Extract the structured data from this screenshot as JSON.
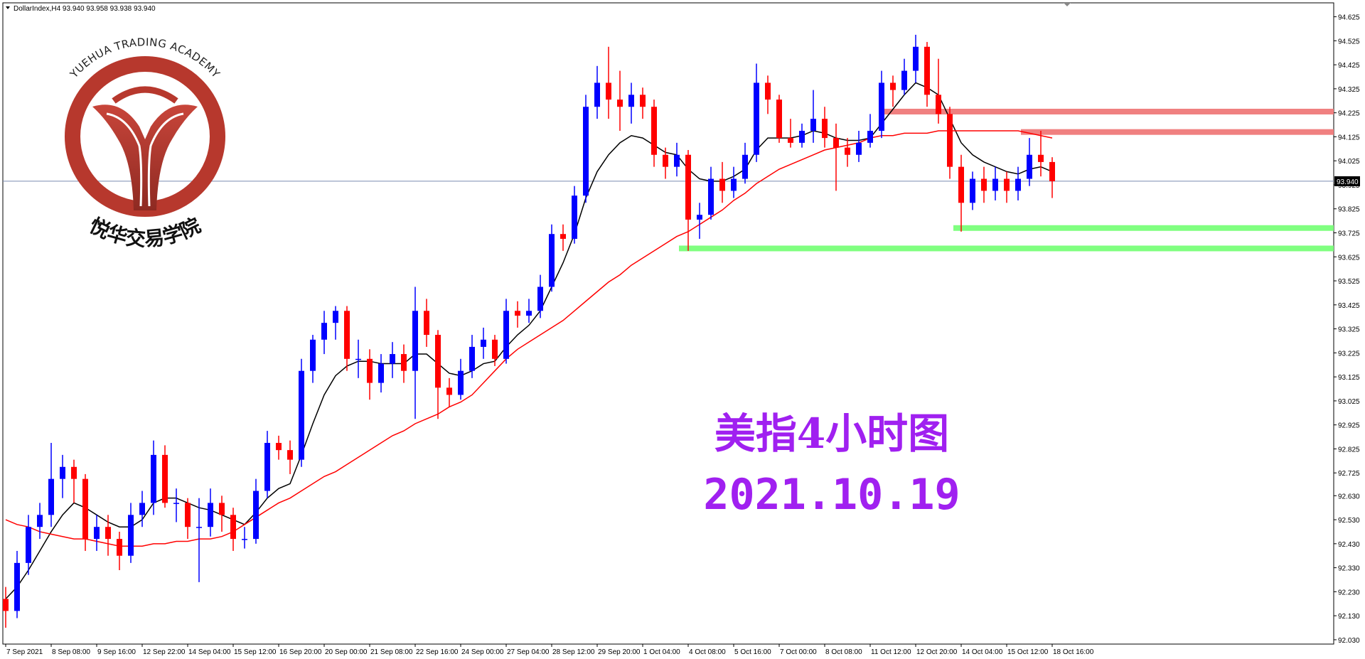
{
  "header": "DollarIndex,H4  93.940 93.958 93.938 93.940",
  "logo": {
    "arc_text": "YUEHUA TRADING ACADEMY",
    "name": "悦华交易学院"
  },
  "annotations": [
    "美指4小时图",
    "2021.10.19"
  ],
  "chart_data": {
    "type": "candlestick",
    "categories": [
      "7 Sep 2021",
      null,
      null,
      null,
      "8 Sep 08:00",
      null,
      null,
      null,
      "9 Sep 16:00",
      null,
      null,
      null,
      "12 Sep 22:00",
      null,
      null,
      null,
      "14 Sep 04:00",
      null,
      null,
      null,
      "15 Sep 12:00",
      null,
      null,
      null,
      "16 Sep 20:00",
      null,
      null,
      null,
      "20 Sep 00:00",
      null,
      null,
      null,
      "21 Sep 08:00",
      null,
      null,
      null,
      "22 Sep 16:00",
      null,
      null,
      null,
      "24 Sep 00:00",
      null,
      null,
      null,
      "27 Sep 04:00",
      null,
      null,
      null,
      "28 Sep 12:00",
      null,
      null,
      null,
      "29 Sep 20:00",
      null,
      null,
      null,
      "1 Oct 04:00",
      null,
      null,
      null,
      "4 Oct 08:00",
      null,
      null,
      null,
      "5 Oct 16:00",
      null,
      null,
      null,
      "7 Oct 00:00",
      null,
      null,
      null,
      "8 Oct 08:00",
      null,
      null,
      null,
      "11 Oct 12:00",
      null,
      null,
      null,
      "12 Oct 20:00",
      null,
      null,
      null,
      "14 Oct 04:00",
      null,
      null,
      null,
      "15 Oct 12:00",
      null,
      null,
      null,
      "18 Oct 16:00"
    ],
    "ohlc": [
      [
        92.2,
        92.25,
        92.08,
        92.15
      ],
      [
        92.15,
        92.4,
        92.12,
        92.35
      ],
      [
        92.35,
        92.55,
        92.3,
        92.5
      ],
      [
        92.5,
        92.6,
        92.45,
        92.55
      ],
      [
        92.55,
        92.85,
        92.5,
        92.7
      ],
      [
        92.7,
        92.8,
        92.62,
        92.75
      ],
      [
        92.75,
        92.78,
        92.6,
        92.7
      ],
      [
        92.7,
        92.72,
        92.4,
        92.45
      ],
      [
        92.45,
        92.55,
        92.4,
        92.5
      ],
      [
        92.5,
        92.55,
        92.38,
        92.45
      ],
      [
        92.45,
        92.48,
        92.32,
        92.38
      ],
      [
        92.38,
        92.6,
        92.35,
        92.55
      ],
      [
        92.55,
        92.65,
        92.5,
        92.6
      ],
      [
        92.6,
        92.86,
        92.55,
        92.8
      ],
      [
        92.8,
        92.84,
        92.58,
        92.6
      ],
      [
        92.6,
        92.66,
        92.52,
        92.6
      ],
      [
        92.6,
        92.62,
        92.45,
        92.5
      ],
      [
        92.5,
        92.62,
        92.27,
        92.5
      ],
      [
        92.5,
        92.66,
        92.46,
        92.6
      ],
      [
        92.6,
        92.63,
        92.48,
        92.55
      ],
      [
        92.55,
        92.58,
        92.4,
        92.45
      ],
      [
        92.45,
        92.5,
        92.41,
        92.45
      ],
      [
        92.45,
        92.7,
        92.43,
        92.65
      ],
      [
        92.65,
        92.9,
        92.62,
        92.85
      ],
      [
        92.85,
        92.88,
        92.78,
        92.82
      ],
      [
        92.82,
        92.86,
        92.72,
        92.78
      ],
      [
        92.78,
        93.2,
        92.75,
        93.15
      ],
      [
        93.15,
        93.3,
        93.1,
        93.28
      ],
      [
        93.28,
        93.4,
        93.22,
        93.35
      ],
      [
        93.35,
        93.42,
        93.28,
        93.4
      ],
      [
        93.4,
        93.42,
        93.15,
        93.2
      ],
      [
        93.2,
        93.28,
        93.12,
        93.2
      ],
      [
        93.2,
        93.24,
        93.03,
        93.1
      ],
      [
        93.1,
        93.22,
        93.06,
        93.18
      ],
      [
        93.18,
        93.27,
        93.12,
        93.22
      ],
      [
        93.22,
        93.26,
        93.1,
        93.15
      ],
      [
        93.15,
        93.5,
        92.95,
        93.4
      ],
      [
        93.4,
        93.45,
        93.25,
        93.3
      ],
      [
        93.3,
        93.32,
        92.95,
        93.08
      ],
      [
        93.08,
        93.12,
        93.0,
        93.05
      ],
      [
        93.05,
        93.2,
        93.03,
        93.15
      ],
      [
        93.15,
        93.3,
        93.12,
        93.25
      ],
      [
        93.25,
        93.33,
        93.2,
        93.28
      ],
      [
        93.28,
        93.3,
        93.17,
        93.2
      ],
      [
        93.2,
        93.45,
        93.18,
        93.4
      ],
      [
        93.4,
        93.44,
        93.33,
        93.38
      ],
      [
        93.38,
        93.45,
        93.35,
        93.4
      ],
      [
        93.4,
        93.55,
        93.37,
        93.5
      ],
      [
        93.5,
        93.76,
        93.48,
        93.72
      ],
      [
        93.72,
        93.76,
        93.65,
        93.7
      ],
      [
        93.7,
        93.92,
        93.68,
        93.88
      ],
      [
        93.88,
        94.3,
        93.85,
        94.25
      ],
      [
        94.25,
        94.42,
        94.2,
        94.35
      ],
      [
        94.35,
        94.5,
        94.2,
        94.28
      ],
      [
        94.28,
        94.4,
        94.15,
        94.25
      ],
      [
        94.25,
        94.35,
        94.18,
        94.3
      ],
      [
        94.3,
        94.33,
        94.2,
        94.25
      ],
      [
        94.25,
        94.28,
        94.0,
        94.05
      ],
      [
        94.05,
        94.08,
        93.95,
        94.0
      ],
      [
        94.0,
        94.1,
        93.96,
        94.05
      ],
      [
        94.05,
        94.07,
        93.65,
        93.78
      ],
      [
        93.78,
        93.85,
        93.7,
        93.8
      ],
      [
        93.8,
        94.0,
        93.78,
        93.95
      ],
      [
        93.95,
        94.02,
        93.85,
        93.9
      ],
      [
        93.9,
        94.0,
        93.87,
        93.95
      ],
      [
        93.95,
        94.1,
        93.93,
        94.05
      ],
      [
        94.05,
        94.43,
        94.02,
        94.35
      ],
      [
        94.35,
        94.38,
        94.22,
        94.28
      ],
      [
        94.28,
        94.3,
        94.1,
        94.12
      ],
      [
        94.12,
        94.2,
        94.08,
        94.1
      ],
      [
        94.1,
        94.18,
        94.08,
        94.15
      ],
      [
        94.15,
        94.32,
        94.1,
        94.2
      ],
      [
        94.2,
        94.25,
        94.08,
        94.12
      ],
      [
        94.12,
        94.18,
        93.9,
        94.08
      ],
      [
        94.08,
        94.12,
        94.0,
        94.05
      ],
      [
        94.05,
        94.15,
        94.02,
        94.1
      ],
      [
        94.1,
        94.22,
        94.08,
        94.15
      ],
      [
        94.15,
        94.4,
        94.12,
        94.35
      ],
      [
        94.35,
        94.38,
        94.25,
        94.32
      ],
      [
        94.32,
        94.45,
        94.3,
        94.4
      ],
      [
        94.4,
        94.55,
        94.35,
        94.5
      ],
      [
        94.5,
        94.52,
        94.25,
        94.3
      ],
      [
        94.3,
        94.45,
        94.18,
        94.22
      ],
      [
        94.22,
        94.25,
        93.95,
        94.0
      ],
      [
        94.0,
        94.05,
        93.73,
        93.85
      ],
      [
        93.85,
        93.98,
        93.82,
        93.95
      ],
      [
        93.95,
        94.0,
        93.85,
        93.9
      ],
      [
        93.9,
        94.0,
        93.86,
        93.95
      ],
      [
        93.95,
        93.98,
        93.85,
        93.9
      ],
      [
        93.9,
        94.0,
        93.86,
        93.95
      ],
      [
        93.95,
        94.12,
        93.92,
        94.05
      ],
      [
        94.05,
        94.15,
        93.96,
        94.02
      ],
      [
        94.02,
        94.04,
        93.87,
        93.94
      ]
    ],
    "up_color": "#0000ff",
    "down_color": "#ff0000",
    "lines": [
      {
        "color": "#000000",
        "values": [
          92.2,
          92.25,
          92.32,
          92.4,
          92.48,
          92.55,
          92.6,
          92.58,
          92.55,
          92.52,
          92.5,
          92.5,
          92.53,
          92.6,
          92.62,
          92.62,
          92.6,
          92.58,
          92.57,
          92.55,
          92.53,
          92.51,
          92.56,
          92.62,
          92.66,
          92.68,
          92.8,
          92.93,
          93.05,
          93.13,
          93.17,
          93.19,
          93.19,
          93.18,
          93.18,
          93.18,
          93.22,
          93.22,
          93.18,
          93.14,
          93.13,
          93.15,
          93.18,
          93.19,
          93.25,
          93.3,
          93.34,
          93.4,
          93.5,
          93.6,
          93.72,
          93.87,
          93.98,
          94.05,
          94.1,
          94.13,
          94.12,
          94.09,
          94.06,
          94.05,
          93.99,
          93.95,
          93.94,
          93.94,
          93.96,
          93.99,
          94.07,
          94.12,
          94.12,
          94.12,
          94.13,
          94.15,
          94.14,
          94.12,
          94.11,
          94.11,
          94.12,
          94.18,
          94.24,
          94.3,
          94.35,
          94.33,
          94.3,
          94.2,
          94.1,
          94.05,
          94.02,
          94.0,
          93.98,
          93.97,
          93.99,
          94.0,
          93.98
        ]
      },
      {
        "color": "#ff0000",
        "values": [
          92.53,
          92.51,
          92.5,
          92.48,
          92.47,
          92.46,
          92.45,
          92.45,
          92.44,
          92.43,
          92.42,
          92.42,
          92.42,
          92.43,
          92.43,
          92.44,
          92.44,
          92.45,
          92.45,
          92.46,
          92.48,
          92.51,
          92.54,
          92.57,
          92.6,
          92.62,
          92.65,
          92.68,
          92.71,
          92.73,
          92.76,
          92.79,
          92.82,
          92.85,
          92.88,
          92.9,
          92.93,
          92.95,
          92.97,
          93.0,
          93.02,
          93.05,
          93.1,
          93.15,
          93.2,
          93.24,
          93.27,
          93.3,
          93.33,
          93.36,
          93.4,
          93.44,
          93.48,
          93.52,
          93.55,
          93.59,
          93.62,
          93.65,
          93.68,
          93.71,
          93.73,
          93.76,
          93.79,
          93.82,
          93.86,
          93.89,
          93.93,
          93.96,
          93.99,
          94.01,
          94.03,
          94.05,
          94.07,
          94.08,
          94.09,
          94.1,
          94.12,
          94.13,
          94.13,
          94.14,
          94.14,
          94.14,
          94.15,
          94.15,
          94.15,
          94.15,
          94.15,
          94.15,
          94.15,
          94.15,
          94.14,
          94.13,
          94.12
        ]
      }
    ],
    "levels": [
      {
        "value": 94.23,
        "color": "#f08080"
      },
      {
        "value": 94.145,
        "color": "#f08080"
      },
      {
        "value": 93.745,
        "color": "#80ff80"
      },
      {
        "value": 93.66,
        "color": "#80ff80"
      }
    ],
    "last_price": {
      "value": 93.94,
      "label": "93.940"
    },
    "ylim": [
      92.012,
      94.683
    ],
    "yticks": [
      94.625,
      94.525,
      94.425,
      94.325,
      94.225,
      94.125,
      94.025,
      93.925,
      93.825,
      93.725,
      93.625,
      93.525,
      93.425,
      93.325,
      93.225,
      93.125,
      93.025,
      92.925,
      92.825,
      92.725,
      {
        "value": 92.63,
        "label": "92.630"
      },
      {
        "value": 92.53,
        "label": "92.530"
      },
      {
        "value": 92.43,
        "label": "92.430"
      },
      {
        "value": 92.33,
        "label": "92.330"
      },
      {
        "value": 92.23,
        "label": "92.230"
      },
      {
        "value": 92.13,
        "label": "92.130"
      },
      {
        "value": 92.03,
        "label": "92.030"
      }
    ]
  }
}
